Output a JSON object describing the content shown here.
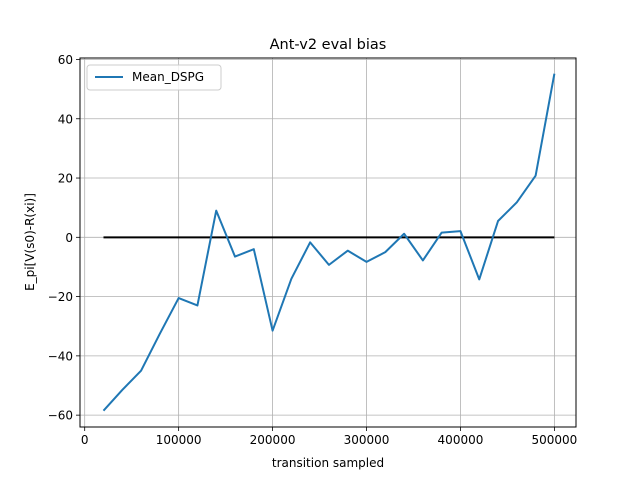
{
  "chart_data": {
    "type": "line",
    "title": "Ant-v2 eval bias",
    "xlabel": "transition sampled",
    "ylabel": "E_pi[V(s0)-R(xi)]",
    "xlim": [
      -5000,
      523000
    ],
    "ylim": [
      -64,
      60.5
    ],
    "xticks": [
      0,
      100000,
      200000,
      300000,
      400000,
      500000
    ],
    "xtick_labels": [
      "0",
      "100000",
      "200000",
      "300000",
      "400000",
      "500000"
    ],
    "yticks": [
      -60,
      -40,
      -20,
      0,
      20,
      40,
      60
    ],
    "ytick_labels": [
      "−60",
      "−40",
      "−20",
      "0",
      "20",
      "40",
      "60"
    ],
    "grid": true,
    "legend_position": "upper-left",
    "series": [
      {
        "name": "Mean_DSPG",
        "color": "#1f77b4",
        "x": [
          20000,
          40000,
          60000,
          80000,
          100000,
          120000,
          140000,
          160000,
          180000,
          200000,
          220000,
          240000,
          260000,
          280000,
          300000,
          320000,
          340000,
          360000,
          380000,
          400000,
          420000,
          440000,
          460000,
          480000,
          500000
        ],
        "y": [
          -58.5,
          -51.5,
          -45,
          -32.5,
          -20.5,
          -23,
          9,
          -6.5,
          -4,
          -31.5,
          -14,
          -1.7,
          -9.3,
          -4.5,
          -8.3,
          -5,
          1.2,
          -7.8,
          1.6,
          2.1,
          -14.2,
          5.5,
          11.8,
          20.8,
          55.2
        ]
      }
    ],
    "reference_line": {
      "color": "#000000",
      "x": [
        20000,
        500000
      ],
      "y": [
        0,
        0
      ]
    }
  }
}
